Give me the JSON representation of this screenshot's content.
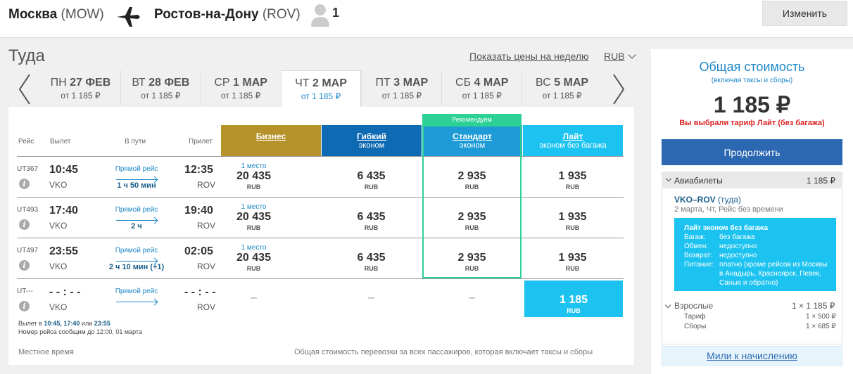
{
  "header": {
    "from_city": "Москва",
    "from_code": "(MOW)",
    "to_city": "Ростов-на-Дону",
    "to_code": "(ROV)",
    "passengers": "1",
    "change_label": "Изменить"
  },
  "title": "Туда",
  "week_link": "Показать цены на неделю",
  "currency": "RUB",
  "dates": [
    {
      "dow": "ПН",
      "day": "27 ФЕВ",
      "price": "от 1 185 ₽"
    },
    {
      "dow": "ВТ",
      "day": "28 ФЕВ",
      "price": "от 1 185 ₽"
    },
    {
      "dow": "СР",
      "day": "1 МАР",
      "price": "от 1 185 ₽"
    },
    {
      "dow": "ЧТ",
      "day": "2 МАР",
      "price": "от 1 185 ₽"
    },
    {
      "dow": "ПТ",
      "day": "3 МАР",
      "price": "от 1 185 ₽"
    },
    {
      "dow": "СБ",
      "day": "4 МАР",
      "price": "от 1 185 ₽"
    },
    {
      "dow": "ВС",
      "day": "5 МАР",
      "price": "от 1 185 ₽"
    }
  ],
  "columns": {
    "flight": "Рейс",
    "depart": "Вылет",
    "enroute": "В пути",
    "arrive": "Прилет"
  },
  "fares": [
    {
      "name": "Бизнес",
      "sub": "",
      "color": "#b5922a"
    },
    {
      "name": "Гибкий",
      "sub": "эконом",
      "color": "#0f6ab4"
    },
    {
      "name": "Стандарт",
      "sub": "эконом",
      "color": "#1e9bd7"
    },
    {
      "name": "Лайт",
      "sub": "эконом без багажа",
      "color": "#1dc3f0"
    }
  ],
  "recommended": "Рекомендуем",
  "flights": [
    {
      "no": "UT367",
      "dep": "10:45",
      "from": "VKO",
      "direct": "Прямой рейс",
      "dur": "1 ч 50 мин",
      "arr": "12:35",
      "to": "ROV",
      "seats": "1 место",
      "prices": [
        "20 435",
        "6 435",
        "2 935",
        "1 935"
      ]
    },
    {
      "no": "UT493",
      "dep": "17:40",
      "from": "VKO",
      "direct": "Прямой рейс",
      "dur": "2 ч",
      "arr": "19:40",
      "to": "ROV",
      "seats": "1 место",
      "prices": [
        "20 435",
        "6 435",
        "2 935",
        "1 935"
      ]
    },
    {
      "no": "UT497",
      "dep": "23:55",
      "from": "VKO",
      "direct": "Прямой рейс",
      "dur": "2 ч 10 мин (+1)",
      "arr": "02:05",
      "to": "ROV",
      "seats": "1 место",
      "prices": [
        "20 435",
        "6 435",
        "2 935",
        "1 935"
      ]
    },
    {
      "no": "UT---",
      "dep": "- - : - -",
      "from": "VKO",
      "direct": "Прямой рейс",
      "dur": "",
      "arr": "- - : - -",
      "to": "ROV",
      "seats": "",
      "prices": [
        "–",
        "–",
        "–",
        "1 185"
      ]
    }
  ],
  "price_currency": "RUB",
  "note_line1_prefix": "Вылет в",
  "note_line1_times": "10:45, 17:40",
  "note_line1_or": "или",
  "note_line1_last": "23:55",
  "note_line2": "Номер рейса сообщим до 12:00, 01 марта",
  "footer_left": "Местное время",
  "footer_right": "Общая стоимость перевозки за всех пассажиров, которая включает таксы и сборы",
  "summary": {
    "title": "Общая стоимость",
    "subtitle": "(включая таксы и сборы)",
    "total": "1 185 ₽",
    "warning": "Вы выбрали тариф Лайт (без багажа)",
    "continue": "Продолжить",
    "tickets_label": "Авиабилеты",
    "tickets_price": "1 185 ₽",
    "segment_route": "VKO–ROV",
    "segment_dir": "(туда)",
    "segment_details": "2 марта, Чт, Рейс без времени",
    "fare_box": {
      "title": "Лайт эконом без багажа",
      "rows": [
        {
          "k": "Багаж:",
          "v": "без багажа"
        },
        {
          "k": "Обмен:",
          "v": "недоступно"
        },
        {
          "k": "Возврат:",
          "v": "недоступно"
        },
        {
          "k": "Питание:",
          "v": "платно (кроме рейсов из Москвы в Анадырь, Красноярск, Певек, Санью и обратно)"
        }
      ]
    },
    "adults_label": "Взрослые",
    "adults_value": "1 × 1 185 ₽",
    "tariff_label": "Тариф",
    "tariff_value": "1 × 500 ₽",
    "fees_label": "Сборы",
    "fees_value": "1 × 685 ₽",
    "miles": "Мили к начислению"
  }
}
